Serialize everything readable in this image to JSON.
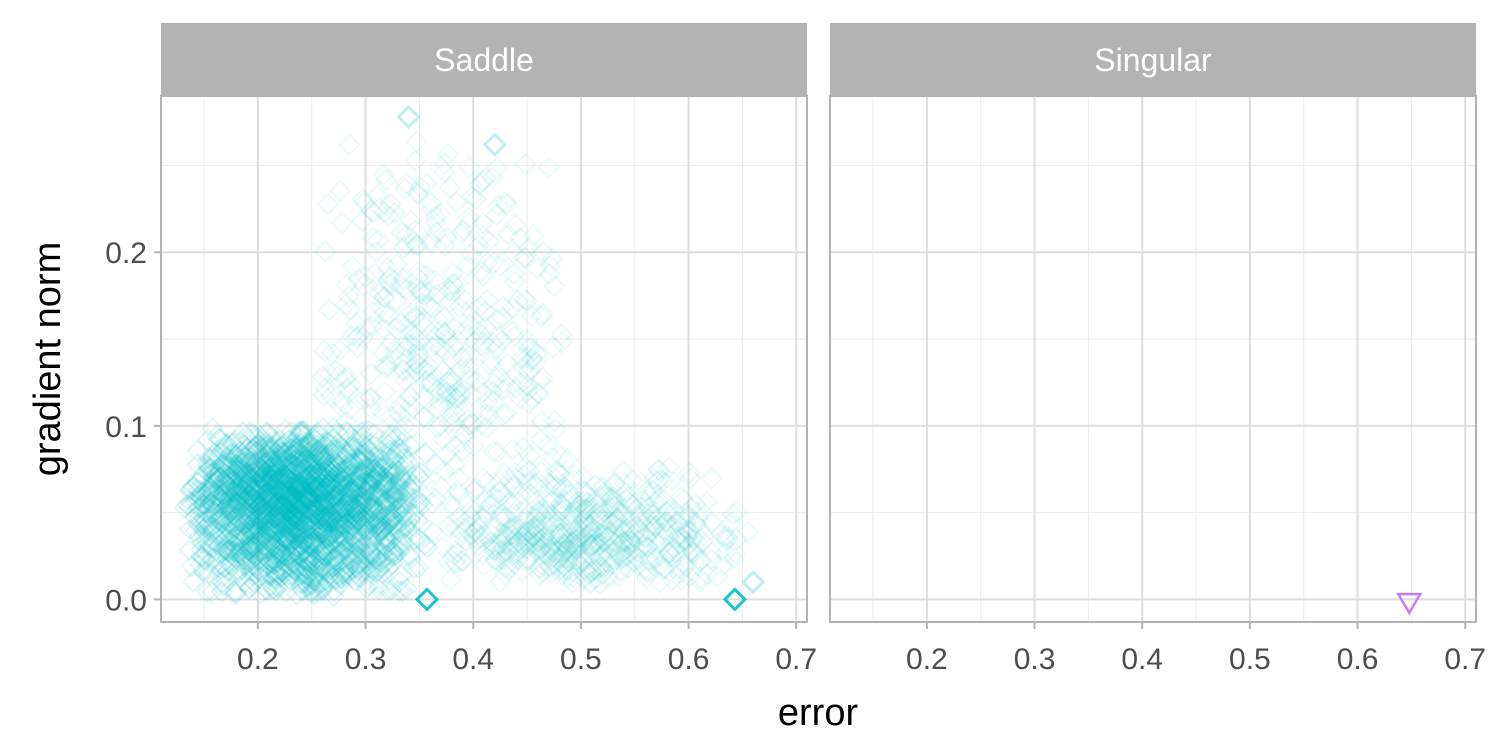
{
  "chart_data": {
    "type": "scatter",
    "xlabel": "error",
    "ylabel": "gradient norm",
    "xlim": [
      0.11,
      0.71
    ],
    "ylim": [
      -0.013,
      0.29
    ],
    "x_ticks": [
      0.2,
      0.3,
      0.4,
      0.5,
      0.6,
      0.7
    ],
    "x_tick_labels": [
      "0.2",
      "0.3",
      "0.4",
      "0.5",
      "0.6",
      "0.7"
    ],
    "y_ticks": [
      0.0,
      0.1,
      0.2
    ],
    "y_tick_labels": [
      "0.0",
      "0.1",
      "0.2"
    ],
    "grid": true,
    "panels": [
      {
        "name": "Saddle",
        "color": "#00BFC4",
        "marker": "diamond-open",
        "clusters": [
          {
            "x_range": [
              0.13,
              0.36
            ],
            "y_range": [
              0.0,
              0.1
            ],
            "peak": [
              0.23,
              0.06
            ],
            "n": 2600
          },
          {
            "x_range": [
              0.25,
              0.5
            ],
            "y_range": [
              0.05,
              0.27
            ],
            "peak": [
              0.36,
              0.14
            ],
            "n": 420
          },
          {
            "x_range": [
              0.35,
              0.67
            ],
            "y_range": [
              0.005,
              0.08
            ],
            "peak": [
              0.5,
              0.035
            ],
            "n": 600
          }
        ],
        "points": [
          {
            "x": 0.357,
            "y": 0.0
          },
          {
            "x": 0.643,
            "y": 0.0
          },
          {
            "x": 0.34,
            "y": 0.278
          },
          {
            "x": 0.42,
            "y": 0.262
          },
          {
            "x": 0.66,
            "y": 0.01
          }
        ]
      },
      {
        "name": "Singular",
        "color": "#C77CFF",
        "marker": "triangle-down-open",
        "points": [
          {
            "x": 0.648,
            "y": -0.002
          }
        ]
      }
    ]
  }
}
